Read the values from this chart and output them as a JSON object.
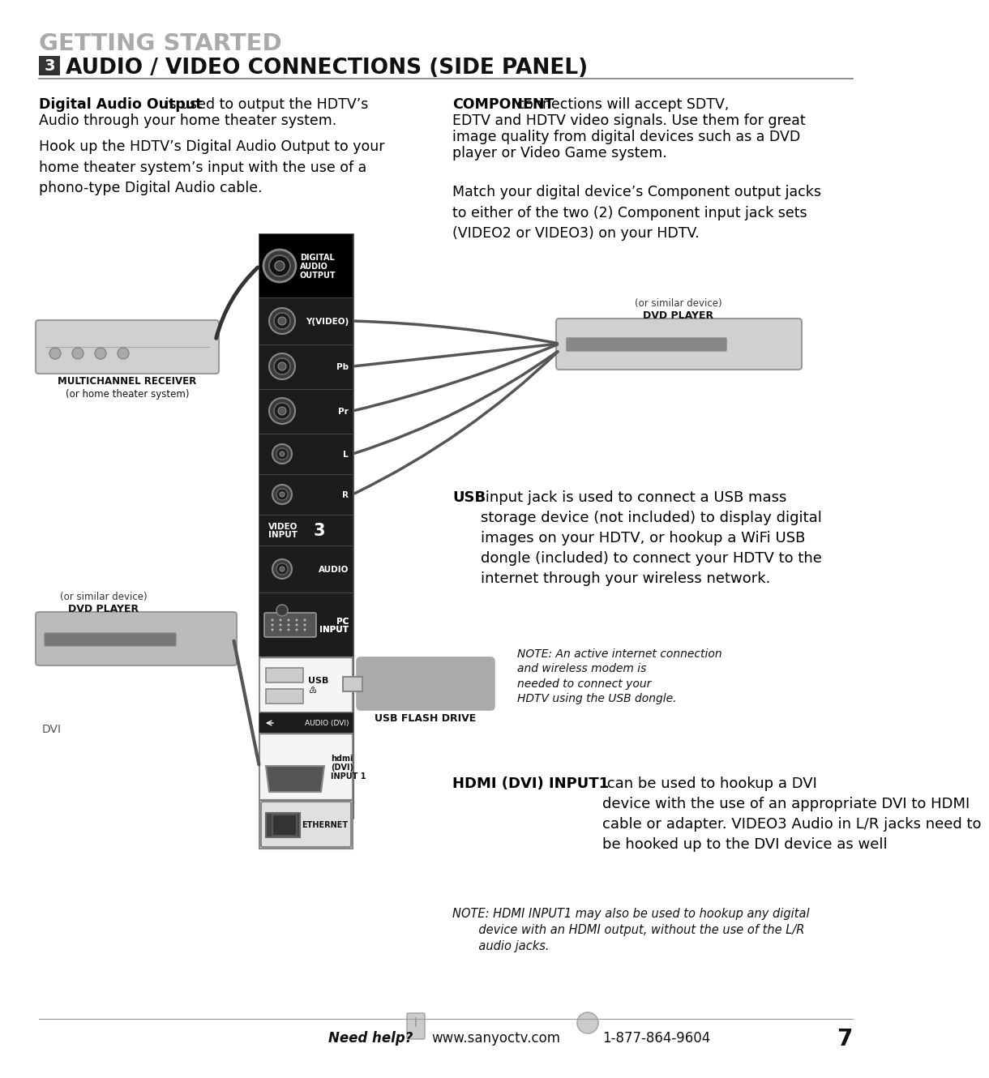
{
  "bg_color": "#ffffff",
  "title_getting_started": "GETTING STARTED",
  "title_gs_color": "#aaaaaa",
  "section_num": "3",
  "section_num_bg": "#333333",
  "section_num_color": "#ffffff",
  "section_title": "AUDIO / VIDEO CONNECTIONS (SIDE PANEL)",
  "section_title_color": "#111111",
  "para1_bold": "Digital Audio Output",
  "para1_normal": " is used to output the HDTV’s\nAudio through your home theater system.",
  "para2": "Hook up the HDTV’s Digital Audio Output to your\nhome theater system’s input with the use of a\nphono-type Digital Audio cable.",
  "right_p1_bold": "COMPONENT",
  "right_p1_normal": " connections will accept SDTV,\nEDTV and HDTV video signals. Use them for great\nimage quality from digital devices such as a DVD\nplayer or Video Game system.",
  "right_p2": "Match your digital device’s Component output jacks\nto either of the two (2) Component input jack sets\n(VIDEO2 or VIDEO3) on your HDTV.",
  "usb_bold": "USB",
  "usb_normal": " input jack is used to connect a USB mass\nstorage device (not included) to display digital\nimages on your HDTV, or hookup a WiFi USB\ndongle (included) to connect your HDTV to the\ninternet through your wireless network.",
  "note_usb": "NOTE: An active internet connection\nand wireless modem is\nneeded to connect your\nHDTV using the USB dongle.",
  "hdmi_bold": "HDMI (DVI) INPUT1",
  "hdmi_normal": " can be used to hookup a DVI\ndevice with the use of an appropriate DVI to HDMI\ncable or adapter. VIDEO3 Audio in L/R jacks need to\nbe hooked up to the DVI device as well",
  "note_hdmi": "NOTE: HDMI INPUT1 may also be used to hookup any digital\n       device with an HDMI output, without the use of the L/R\n       audio jacks.",
  "multichannel_label1": "MULTICHANNEL RECEIVER",
  "multichannel_label2": "(or home theater system)",
  "dvd_top1": "DVD PLAYER",
  "dvd_top2": "(or similar device)",
  "dvd_bot1": "DVD PLAYER",
  "dvd_bot2": "(or similar device)",
  "dvi_label": "DVI",
  "usb_flash_label": "USB FLASH DRIVE",
  "footer_help": "Need help?",
  "footer_url": "www.sanyoctv.com",
  "footer_phone": "1-877-864-9604",
  "footer_page": "7",
  "panel_color": "#111111",
  "panel_border": "#555555",
  "port_ring_outer": "#777777",
  "port_ring_inner": "#222222",
  "white_box_color": "#f0f0f0",
  "white_box_border": "#888888"
}
